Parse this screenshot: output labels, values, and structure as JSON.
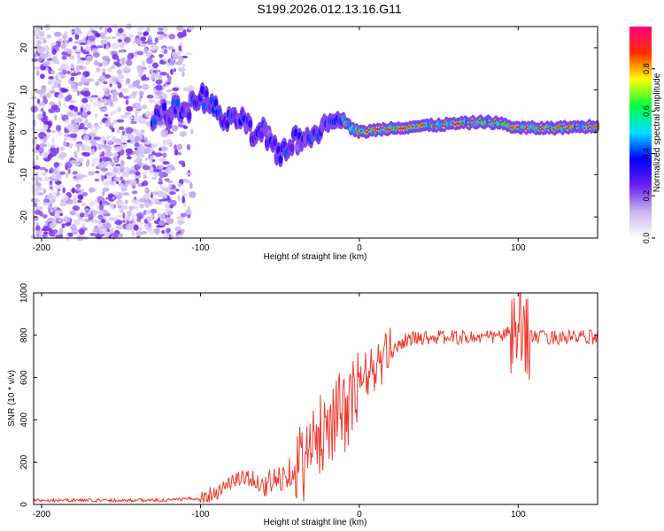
{
  "figure": {
    "title": "S199.2026.012.13.16.G11"
  },
  "chart_data": [
    {
      "type": "heatmap",
      "title": "S199.2026.012.13.16.G11",
      "xlabel": "Height of straight line (km)",
      "ylabel": "Frequency (Hz)",
      "xlim": [
        -205,
        150
      ],
      "ylim": [
        -25,
        25
      ],
      "xticks": [
        -200,
        -100,
        0,
        100
      ],
      "yticks": [
        -20,
        -10,
        0,
        10,
        20
      ],
      "colorbar": {
        "label": "Normalized spectral amplitude",
        "range": [
          0,
          1
        ],
        "ticks": [
          "0.0",
          "0.2",
          "0.4",
          "0.6",
          "0.8"
        ],
        "tick_values": [
          0.0,
          0.2,
          0.4,
          0.6,
          0.8
        ],
        "colormap": [
          "#ffffff",
          "#c8b4f0",
          "#6a1ef0",
          "#0000ff",
          "#00e0ff",
          "#00ff40",
          "#ffff00",
          "#ff3000",
          "#ff0080"
        ]
      },
      "ridge": {
        "x": [
          -130,
          -115,
          -105,
          -100,
          -95,
          -90,
          -85,
          -80,
          -75,
          -70,
          -65,
          -60,
          -55,
          -50,
          -45,
          -40,
          -35,
          -30,
          -25,
          -20,
          -15,
          -10,
          -5,
          0,
          10,
          20,
          40,
          60,
          80,
          90,
          100,
          120,
          150
        ],
        "freq": [
          4,
          5,
          6,
          9,
          7,
          5,
          3,
          2,
          4,
          1,
          -2,
          0,
          -3,
          -5,
          -3,
          -2,
          -2,
          0,
          1,
          2,
          3,
          3,
          1,
          0,
          0.5,
          1,
          1.5,
          2,
          2.5,
          2,
          1,
          1,
          1.5
        ]
      }
    },
    {
      "type": "line",
      "xlabel": "Height of straight line (km)",
      "ylabel": "SNR (10 * v/v)",
      "xlim": [
        -205,
        150
      ],
      "ylim": [
        0,
        1000
      ],
      "xticks": [
        -200,
        -100,
        0,
        100
      ],
      "yticks": [
        0,
        200,
        400,
        600,
        800,
        1000
      ],
      "series": [
        {
          "name": "SNR",
          "color": "#f03a2e",
          "x": [
            -205,
            -180,
            -160,
            -140,
            -120,
            -100,
            -90,
            -80,
            -70,
            -60,
            -50,
            -40,
            -30,
            -25,
            -20,
            -15,
            -10,
            -5,
            0,
            5,
            10,
            15,
            20,
            25,
            30,
            40,
            60,
            80,
            90,
            95,
            100,
            105,
            110,
            120,
            150
          ],
          "y": [
            20,
            20,
            20,
            20,
            20,
            30,
            60,
            110,
            130,
            90,
            120,
            180,
            240,
            330,
            390,
            420,
            430,
            480,
            560,
            620,
            640,
            680,
            720,
            760,
            780,
            790,
            790,
            790,
            800,
            810,
            780,
            820,
            790,
            790,
            790
          ]
        }
      ]
    }
  ]
}
